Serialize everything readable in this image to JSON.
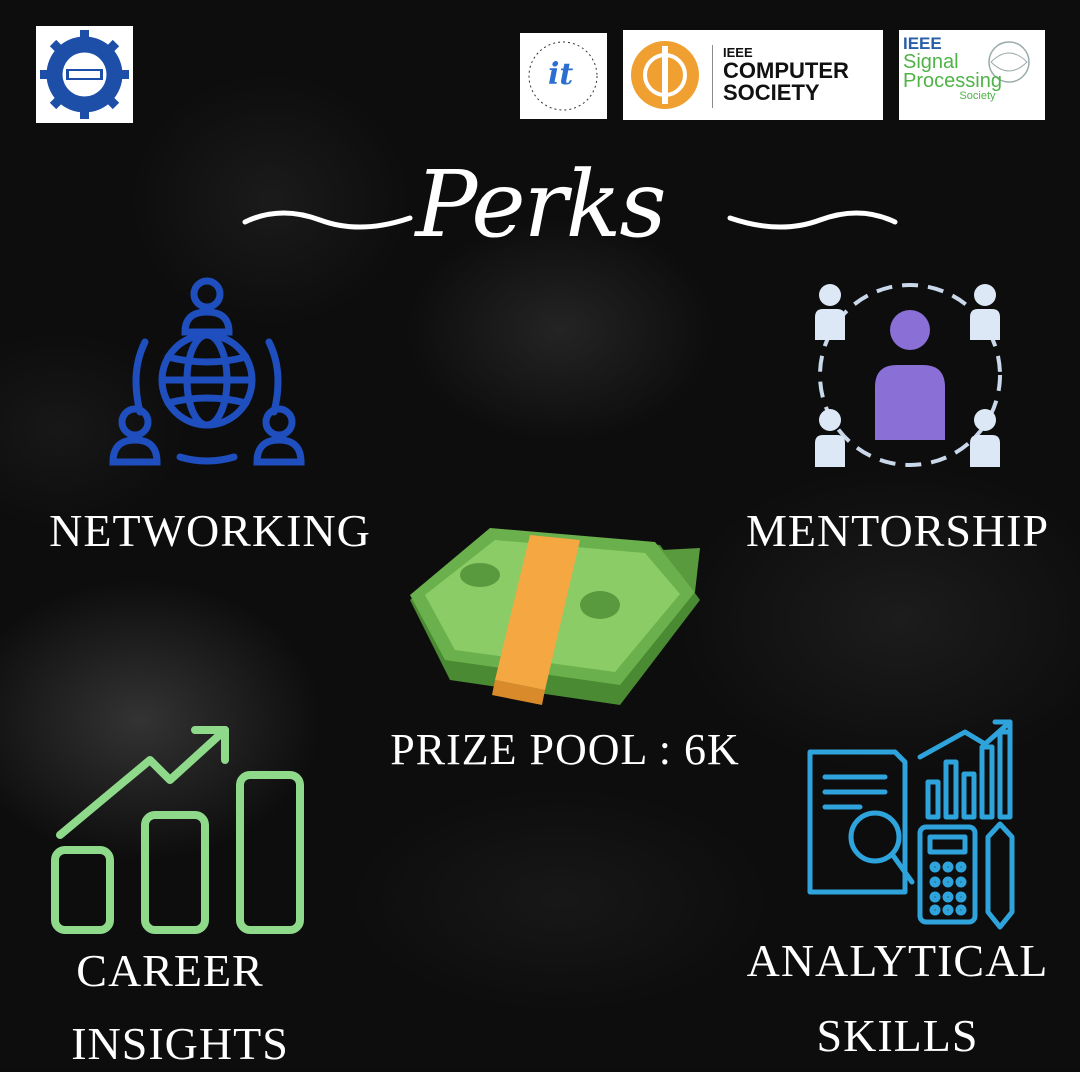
{
  "logos": [
    {
      "name": "ieee-student-branch-logo"
    },
    {
      "name": "ieee-information-theory-society-logo",
      "text": "it"
    },
    {
      "name": "ieee-computer-society-logo",
      "line1": "IEEE",
      "line2": "COMPUTER",
      "line3": "SOCIETY"
    },
    {
      "name": "ieee-signal-processing-society-logo",
      "line1": "IEEE",
      "line2": "Signal",
      "line3": "Processing",
      "line4": "Society"
    }
  ],
  "title": "Perks",
  "perks": {
    "networking": "NETWORKING",
    "mentorship": "MENTORSHIP",
    "prize": "PRIZE POOL : 6K",
    "career_line1": "CAREER",
    "career_line2": "INSIGHTS",
    "analytical_line1": "ANALYTICAL",
    "analytical_line2": "SKILLS"
  },
  "colors": {
    "background": "#0d0d0d",
    "networking_icon": "#1f4fbf",
    "mentorship_center": "#8a6fd6",
    "mentorship_people": "#dce8f5",
    "money_green": "#6ab04c",
    "money_band": "#f5a742",
    "career_icon": "#8fd98a",
    "analytical_icon": "#2fa3dc"
  },
  "icons": [
    "networking-icon",
    "mentorship-icon",
    "money-stack-icon",
    "career-growth-icon",
    "analytics-icon"
  ]
}
